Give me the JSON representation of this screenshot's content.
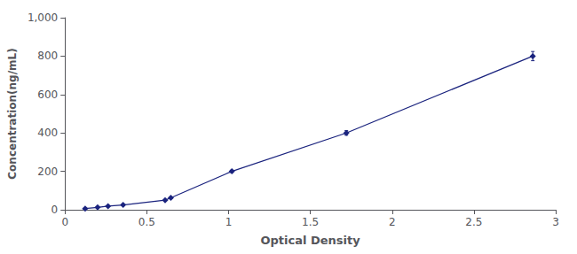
{
  "chart_data": {
    "type": "line",
    "x": [
      0.123,
      0.199,
      0.263,
      0.355,
      0.612,
      0.647,
      1.02,
      1.72,
      2.86
    ],
    "values": [
      6.25,
      12.5,
      18.75,
      25.0,
      50.0,
      62.5,
      200.0,
      400.0,
      800.0
    ],
    "errors": [
      3,
      3,
      3,
      3,
      3,
      3,
      6,
      12,
      24
    ],
    "color": "#1a237e",
    "marker": "diamond",
    "xlabel": "Optical Density",
    "ylabel": "Concentration(ng/mL)",
    "xlim": [
      0.0,
      3.0
    ],
    "ylim": [
      0,
      1000
    ],
    "xticks": [
      0,
      0.5,
      1,
      1.5,
      2,
      2.5,
      3
    ],
    "yticks": [
      0,
      200,
      400,
      600,
      800,
      1000
    ],
    "grid": false
  }
}
